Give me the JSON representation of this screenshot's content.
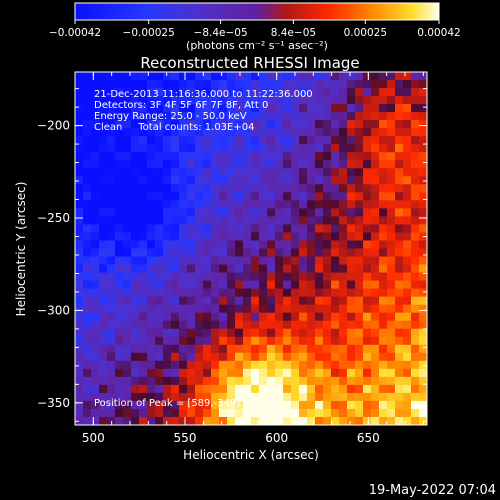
{
  "chart_data": {
    "type": "heatmap",
    "title": "Reconstructed RHESSI Image",
    "xlabel": "Heliocentric X (arcsec)",
    "ylabel": "Heliocentric Y (arcsec)",
    "xlim": [
      490,
      682
    ],
    "ylim": [
      -362,
      -171
    ],
    "x_ticks": [
      {
        "value": 500,
        "label": "500"
      },
      {
        "value": 550,
        "label": "550"
      },
      {
        "value": 600,
        "label": "600"
      },
      {
        "value": 650,
        "label": "650"
      }
    ],
    "y_ticks": [
      {
        "value": -200,
        "label": "−200"
      },
      {
        "value": -250,
        "label": "−250"
      },
      {
        "value": -300,
        "label": "−300"
      },
      {
        "value": -350,
        "label": "−350"
      }
    ],
    "colorbar": {
      "range": [
        -0.00042,
        0.00042
      ],
      "ticks": [
        {
          "value": -0.00042,
          "label": "−0.00042"
        },
        {
          "value": -0.00025,
          "label": "−0.00025"
        },
        {
          "value": -8.4e-05,
          "label": "−8.4e−05"
        },
        {
          "value": 8.4e-05,
          "label": "8.4e−05"
        },
        {
          "value": 0.00025,
          "label": "0.00025"
        },
        {
          "value": 0.00042,
          "label": "0.00042"
        }
      ],
      "unit_label": "(photons cm⁻² s⁻¹ asec⁻²)"
    },
    "annotations": {
      "time_range": "21-Dec-2013 11:16:36.000 to 11:22:36.000",
      "detectors": "Detectors: 3F 4F 5F 6F 7F 8F, Att 0",
      "energy_range": "Energy Range: 25.0 - 50.0 keV",
      "clean_counts": "Clean     Total counts: 1.03E+04",
      "peak": "Position of Peak = [589,-349]"
    },
    "peak": {
      "x": 589,
      "y": -349
    },
    "grid": false,
    "colormap": "blue-purple-red-orange-yellow-white"
  },
  "footer": {
    "date": "19-May-2022 07:04"
  },
  "colors": {
    "background": "#000000",
    "text": "#ffffff",
    "negative": "#0a1cff",
    "neutral": "#5a2db0",
    "low_positive": "#c41010",
    "high_positive": "#ffffb0"
  }
}
